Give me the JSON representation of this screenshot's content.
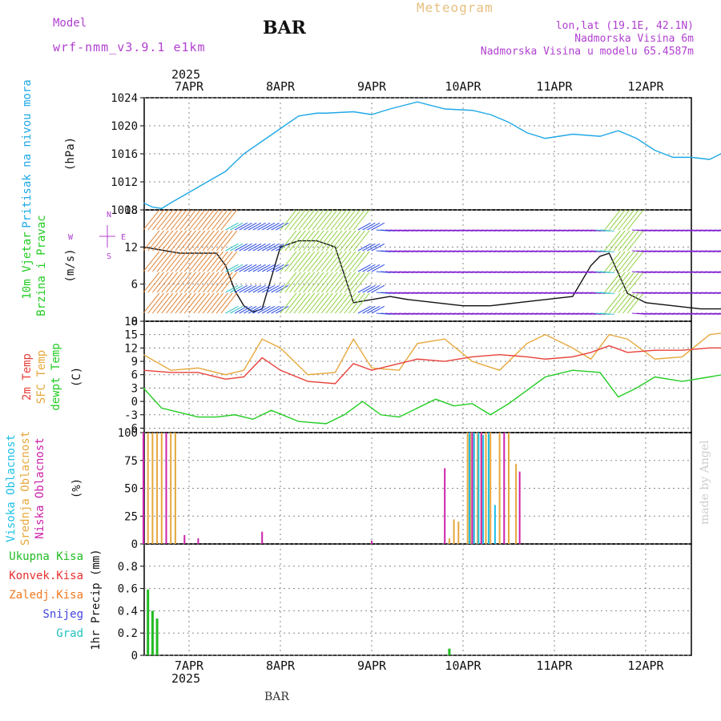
{
  "header": {
    "model_label": "Model",
    "model_name": "wrf-nmm_v3.9.1 e1km",
    "station": "BAR",
    "title": "Meteogram",
    "lonlat": "lon,lat (19.1E, 42.1N)",
    "elevation": "Nadmorska Visina 6m",
    "model_elevation": "Nadmorska Visina u modelu 65.4587m",
    "year": "2025",
    "footer_station": "BAR",
    "watermark": "made by Angel"
  },
  "colors": {
    "pressure": "#1ea8e6",
    "temp2m": "#e8403a",
    "sfc": "#e6a83c",
    "dewpt": "#22cc22",
    "high_cloud": "#1ec0e6",
    "mid_cloud": "#e6a83c",
    "low_cloud": "#cc22aa",
    "precip_total": "#22bb22",
    "precip_conv": "#e83030",
    "precip_frz": "#f07820",
    "snow": "#4444dd",
    "hail": "#22c0c0"
  },
  "chart_data": [
    {
      "type": "line",
      "panel": "pressure",
      "ylabel": [
        "Pritisak na nivou mora",
        "(hPa)"
      ],
      "ylim": [
        1008,
        1024
      ],
      "yticks": [
        "1008",
        "1012",
        "1016",
        "1020",
        "1024"
      ],
      "x_dates": [
        "7APR",
        "8APR",
        "9APR",
        "10APR",
        "11APR",
        "12APR"
      ],
      "xlim_day": [
        0,
        6
      ],
      "series": [
        {
          "x": [
            0.0,
            0.1,
            0.2,
            0.3,
            0.5,
            0.7,
            0.9,
            1.1,
            1.3,
            1.5,
            1.7,
            1.9,
            2.0,
            2.3,
            2.5,
            2.7,
            3.0,
            3.3,
            3.6,
            3.8,
            4.0,
            4.2,
            4.4,
            4.7,
            5.0,
            5.2,
            5.4,
            5.6,
            5.8,
            6.0,
            6.2,
            6.4,
            6.6
          ],
          "y": [
            1009,
            1008.4,
            1008.2,
            1009.0,
            1010.5,
            1012.0,
            1013.5,
            1016.0,
            1017.8,
            1019.6,
            1021.4,
            1021.8,
            1021.8,
            1022.0,
            1021.6,
            1022.4,
            1023.4,
            1022.4,
            1022.2,
            1021.6,
            1020.5,
            1019.0,
            1018.2,
            1018.8,
            1018.5,
            1019.3,
            1018.2,
            1016.5,
            1015.5,
            1015.5,
            1015.2,
            1016.5,
            1016.0
          ]
        }
      ]
    },
    {
      "type": "line",
      "panel": "wind",
      "ylabel": [
        "10m Vjetar",
        "Brzina i Pravac",
        "(m/s)"
      ],
      "compass": {
        "n": "N",
        "s": "S",
        "e": "E",
        "w": "W"
      },
      "ylim": [
        0,
        18
      ],
      "yticks": [
        "0",
        "6",
        "12",
        "18"
      ],
      "series": [
        {
          "name": "speed",
          "x": [
            0.0,
            0.2,
            0.4,
            0.6,
            0.8,
            0.9,
            1.0,
            1.1,
            1.2,
            1.3,
            1.5,
            1.7,
            1.9,
            2.1,
            2.3,
            2.5,
            2.7,
            2.9,
            3.2,
            3.5,
            3.8,
            4.1,
            4.4,
            4.7,
            4.9,
            5.0,
            5.1,
            5.3,
            5.5,
            5.8,
            6.1,
            6.4,
            6.6
          ],
          "y": [
            12,
            11.5,
            11.0,
            11.0,
            11.0,
            9,
            5,
            2.5,
            1.5,
            2.0,
            12,
            13,
            13,
            12,
            3,
            3.5,
            4,
            3.5,
            3,
            2.5,
            2.5,
            3,
            3.5,
            4,
            9,
            10.5,
            11,
            4.5,
            3,
            2.5,
            2,
            2,
            2.5
          ]
        }
      ]
    },
    {
      "type": "line",
      "panel": "temperature",
      "ylabel": [
        "2m Temp",
        "SFC Temp",
        "dewpt Temp",
        "(C)"
      ],
      "ylim": [
        -7,
        18
      ],
      "yticks": [
        "-6",
        "-3",
        "0",
        "3",
        "6",
        "9",
        "12",
        "15",
        "18"
      ],
      "series": [
        {
          "name": "2m Temp",
          "x": [
            0.0,
            0.3,
            0.6,
            0.9,
            1.1,
            1.3,
            1.5,
            1.8,
            2.1,
            2.3,
            2.5,
            2.8,
            3.0,
            3.3,
            3.6,
            3.9,
            4.2,
            4.4,
            4.7,
            4.9,
            5.1,
            5.3,
            5.6,
            5.9,
            6.2,
            6.6
          ],
          "y": [
            7,
            6.5,
            6.5,
            5.0,
            5.5,
            9.8,
            7.0,
            4.5,
            4.0,
            8.5,
            7.0,
            8.5,
            9.5,
            9.0,
            10.0,
            10.5,
            10.0,
            9.5,
            10.0,
            11.0,
            12.5,
            11.0,
            11.5,
            11.5,
            12.0,
            12.0
          ]
        },
        {
          "name": "SFC Temp",
          "x": [
            0.0,
            0.3,
            0.6,
            0.9,
            1.1,
            1.3,
            1.5,
            1.8,
            2.1,
            2.3,
            2.5,
            2.8,
            3.0,
            3.3,
            3.6,
            3.9,
            4.2,
            4.4,
            4.7,
            4.9,
            5.1,
            5.3,
            5.6,
            5.9,
            6.2,
            6.6
          ],
          "y": [
            10.5,
            7.0,
            7.5,
            6.0,
            7.0,
            14.0,
            12.0,
            6.0,
            6.5,
            14.0,
            7.5,
            7.0,
            13.0,
            14.0,
            9.0,
            7.0,
            13.0,
            15.0,
            12.0,
            9.5,
            15.0,
            14.0,
            9.5,
            10.0,
            15.0,
            16.0
          ]
        },
        {
          "name": "dewpt Temp",
          "x": [
            0.0,
            0.2,
            0.4,
            0.6,
            0.8,
            1.0,
            1.2,
            1.4,
            1.7,
            2.0,
            2.2,
            2.4,
            2.6,
            2.8,
            3.0,
            3.2,
            3.4,
            3.6,
            3.8,
            4.0,
            4.2,
            4.4,
            4.7,
            5.0,
            5.2,
            5.4,
            5.6,
            5.9,
            6.2,
            6.6
          ],
          "y": [
            3.0,
            -1.5,
            -2.5,
            -3.5,
            -3.5,
            -3.0,
            -4.0,
            -2.0,
            -4.5,
            -5.0,
            -3.0,
            0.0,
            -3.0,
            -3.5,
            -1.5,
            0.5,
            -1.0,
            -0.5,
            -3.0,
            -0.5,
            2.5,
            5.5,
            7.0,
            6.5,
            1.0,
            3.0,
            5.5,
            4.5,
            5.5,
            7.0
          ]
        }
      ]
    },
    {
      "type": "bar",
      "panel": "clouds",
      "ylabel": [
        "Visoka Oblacnost",
        "Srednja Oblacnost",
        "Niska Oblacnost",
        "(%)"
      ],
      "ylim": [
        0,
        100
      ],
      "yticks": [
        "0",
        "25",
        "50",
        "75",
        "100"
      ],
      "series": [
        {
          "name": "Srednja Oblacnost",
          "x": [
            0.05,
            0.1,
            0.15,
            0.2,
            0.3,
            0.35,
            3.35,
            3.4,
            3.45,
            3.55,
            3.58,
            3.62,
            3.66,
            3.7,
            3.75,
            3.8,
            3.9,
            4.0,
            4.08
          ],
          "y": [
            100,
            100,
            100,
            100,
            100,
            100,
            5,
            22,
            20,
            100,
            100,
            100,
            100,
            100,
            100,
            100,
            100,
            100,
            72
          ]
        },
        {
          "name": "Visoka Oblacnost",
          "x": [
            3.57,
            3.62,
            3.67,
            3.72,
            3.78,
            3.85
          ],
          "y": [
            100,
            100,
            100,
            98,
            100,
            35
          ]
        },
        {
          "name": "Niska Oblacnost",
          "x": [
            0.0,
            0.25,
            0.45,
            0.6,
            1.3,
            2.5,
            3.3,
            3.6,
            3.7,
            3.95,
            4.12
          ],
          "y": [
            100,
            100,
            8,
            5,
            11,
            3,
            68,
            100,
            100,
            100,
            65
          ]
        }
      ]
    },
    {
      "type": "bar",
      "panel": "precip",
      "ylabel": [
        "1hr Precip (mm)"
      ],
      "legend": [
        "Ukupna Kisa",
        "Konvek.Kisa",
        "Zaledj.Kisa",
        "Snijeg",
        "Grad"
      ],
      "ylim": [
        0,
        1.0
      ],
      "yticks": [
        "0",
        "0.2",
        "0.4",
        "0.6",
        "0.8"
      ],
      "series": [
        {
          "name": "Ukupna Kisa",
          "x": [
            0.05,
            0.1,
            0.15,
            3.35
          ],
          "y": [
            0.59,
            0.4,
            0.33,
            0.06
          ]
        }
      ]
    }
  ]
}
